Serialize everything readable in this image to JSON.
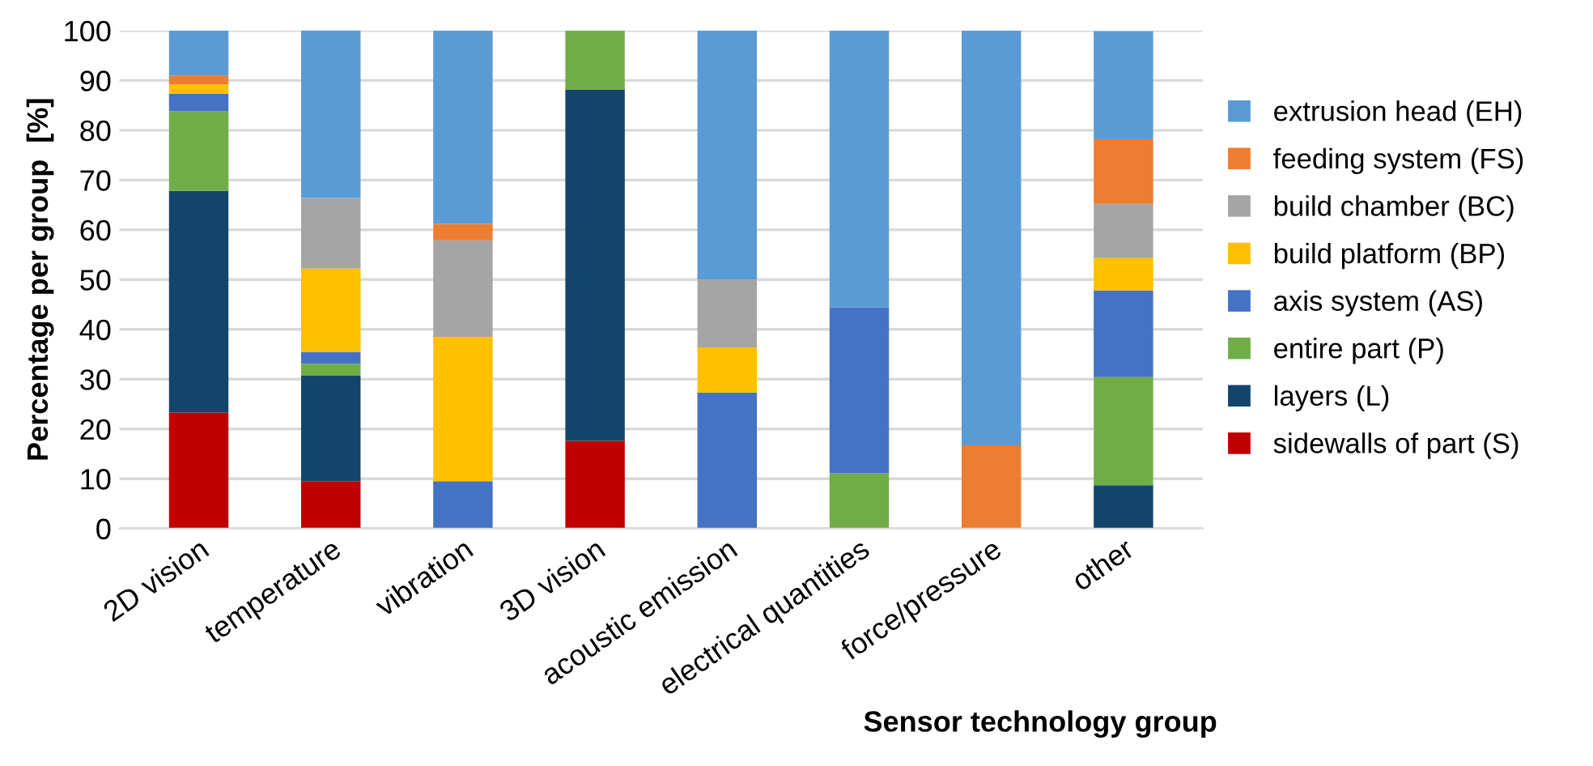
{
  "chart_data": {
    "type": "bar",
    "stacked": true,
    "xlabel": "Sensor technology group",
    "ylabel": "Percentage per group  [%]",
    "categories": [
      "2D vision",
      "temperature",
      "vibration",
      "3D vision",
      "acoustic emission",
      "electrical quantities",
      "force/pressure",
      "other"
    ],
    "series": [
      {
        "name": "sidewalls of part (S)",
        "color": "#c00000",
        "values": [
          23.3,
          9.5,
          0,
          17.6,
          0,
          0,
          0,
          0
        ]
      },
      {
        "name": "layers (L)",
        "color": "#12456b",
        "values": [
          44.5,
          21.2,
          0,
          70.6,
          0,
          0,
          0,
          8.7
        ]
      },
      {
        "name": "entire part (P)",
        "color": "#70ad47",
        "values": [
          16.0,
          2.4,
          0,
          11.8,
          0,
          11.1,
          0,
          21.7
        ]
      },
      {
        "name": "axis system (AS)",
        "color": "#4472c4",
        "values": [
          3.5,
          2.4,
          9.5,
          0,
          27.3,
          33.3,
          0,
          17.4
        ]
      },
      {
        "name": "build platform (BP)",
        "color": "#ffc000",
        "values": [
          1.9,
          16.7,
          29.0,
          0,
          9.1,
          0,
          0,
          6.5
        ]
      },
      {
        "name": "build chamber (BC)",
        "color": "#a5a5a5",
        "values": [
          0,
          14.2,
          19.4,
          0,
          13.6,
          0,
          0,
          10.9
        ]
      },
      {
        "name": "feeding system (FS)",
        "color": "#ed7d31",
        "values": [
          1.7,
          0,
          3.3,
          0,
          0,
          0,
          16.7,
          13.0
        ]
      },
      {
        "name": "extrusion head (EH)",
        "color": "#5b9bd5",
        "values": [
          9.1,
          33.8,
          38.8,
          0,
          50.0,
          55.6,
          83.3,
          21.7
        ]
      }
    ],
    "ylim": [
      0,
      100
    ],
    "yticks": [
      0,
      10,
      20,
      30,
      40,
      50,
      60,
      70,
      80,
      90,
      100
    ],
    "grid": "y",
    "legend": "right"
  }
}
